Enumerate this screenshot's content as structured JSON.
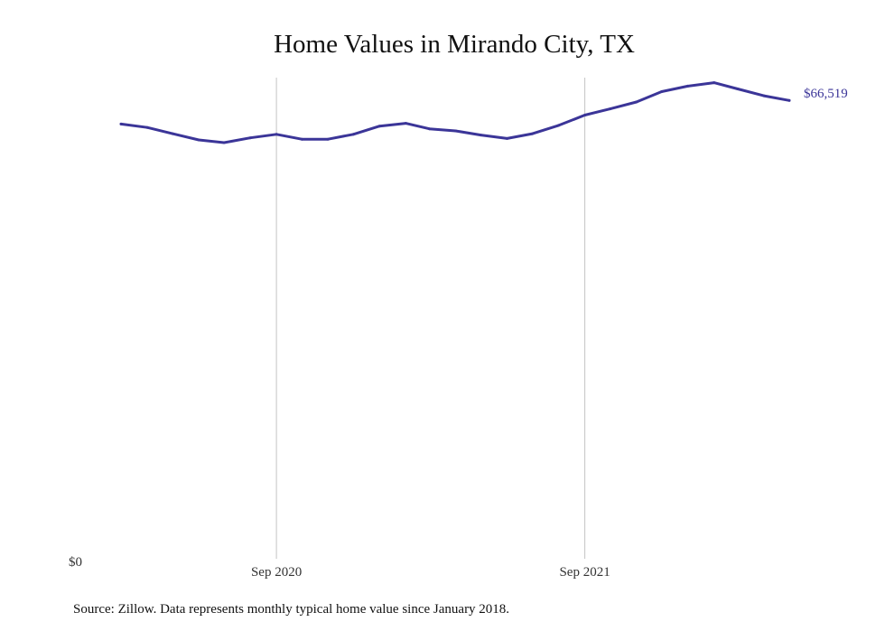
{
  "colors": {
    "line": "#3b3598",
    "gridline": "#c4c4c4",
    "background": "#ffffff"
  },
  "source_note": "Source: Zillow. Data represents monthly typical home value since January 2018.",
  "chart_data": {
    "type": "line",
    "title": "Home Values in Mirando City, TX",
    "xlabel": "",
    "ylabel": "",
    "ylim": [
      0,
      68000
    ],
    "y_tick_labels": [
      {
        "value": 0,
        "label": "$0"
      }
    ],
    "x_ticks": [
      {
        "date": "2020-09-01",
        "label": "Sep 2020"
      },
      {
        "date": "2021-09-01",
        "label": "Sep 2021"
      }
    ],
    "grid": "vertical lines at x ticks",
    "end_label": "$66,519",
    "series": [
      {
        "x": [
          "2020-03-01",
          "2020-04-01",
          "2020-05-01",
          "2020-06-01",
          "2020-07-01",
          "2020-08-01",
          "2020-09-01",
          "2020-10-01",
          "2020-11-01",
          "2020-12-01",
          "2021-01-01",
          "2021-02-01",
          "2021-03-01",
          "2021-04-01",
          "2021-05-01",
          "2021-06-01",
          "2021-07-01",
          "2021-08-01",
          "2021-09-01",
          "2021-10-01",
          "2021-11-01",
          "2021-12-01",
          "2022-01-01",
          "2022-02-01",
          "2022-03-01",
          "2022-04-01",
          "2022-05-01"
        ],
        "y": [
          63100,
          62600,
          61700,
          60800,
          60400,
          61100,
          61600,
          60900,
          60900,
          61600,
          62800,
          63200,
          62400,
          62100,
          61500,
          61000,
          61700,
          62900,
          64400,
          65300,
          66300,
          67800,
          68600,
          69100,
          68200,
          67200,
          66519
        ]
      }
    ]
  }
}
